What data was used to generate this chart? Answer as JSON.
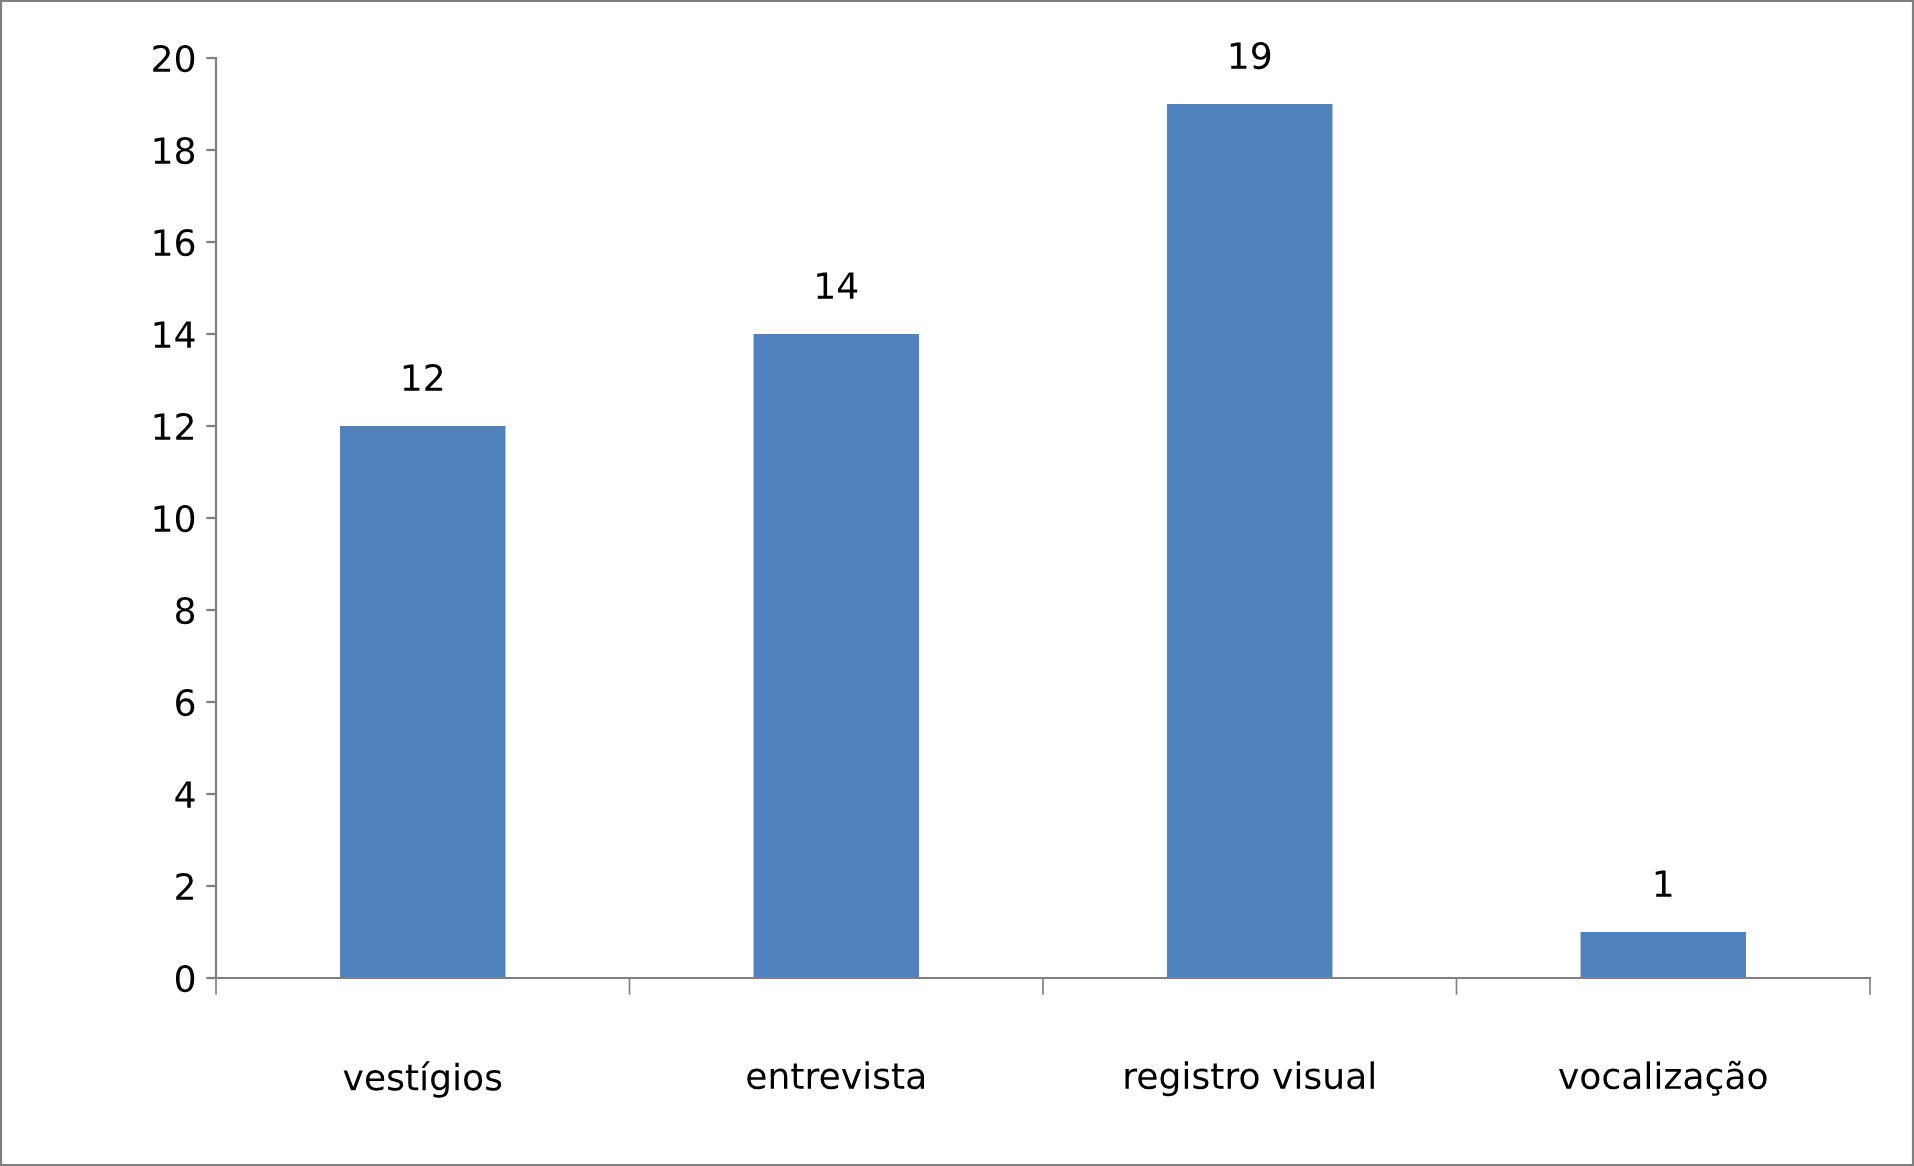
{
  "chart_data": {
    "type": "bar",
    "categories": [
      "vestígios",
      "entrevista",
      "registro visual",
      "vocalização"
    ],
    "values": [
      12,
      14,
      19,
      1
    ],
    "color": "#4f81bd",
    "ylim": [
      0,
      20
    ],
    "yticks": [
      0,
      2,
      4,
      6,
      8,
      10,
      12,
      14,
      16,
      18,
      20
    ],
    "grid": false,
    "data_labels": true
  }
}
